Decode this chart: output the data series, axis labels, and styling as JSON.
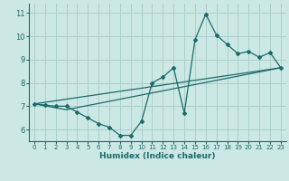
{
  "xlabel": "Humidex (Indice chaleur)",
  "ylabel": "",
  "background_color": "#cce8e4",
  "line_color": "#1a6b6b",
  "grid_color": "#aacfcb",
  "xlim": [
    -0.5,
    23.5
  ],
  "ylim": [
    5.5,
    11.4
  ],
  "xticks": [
    0,
    1,
    2,
    3,
    4,
    5,
    6,
    7,
    8,
    9,
    10,
    11,
    12,
    13,
    14,
    15,
    16,
    17,
    18,
    19,
    20,
    21,
    22,
    23
  ],
  "yticks": [
    6,
    7,
    8,
    9,
    10,
    11
  ],
  "line1_x": [
    0,
    1,
    2,
    3,
    4,
    5,
    6,
    7,
    8,
    9,
    10,
    11,
    12,
    13,
    14,
    15,
    16,
    17,
    18,
    19,
    20,
    21,
    22,
    23
  ],
  "line1_y": [
    7.1,
    7.05,
    7.0,
    7.0,
    6.75,
    6.5,
    6.25,
    6.1,
    5.75,
    5.75,
    6.35,
    8.0,
    8.25,
    8.65,
    6.7,
    9.85,
    10.95,
    10.05,
    9.65,
    9.25,
    9.35,
    9.1,
    9.3,
    8.65
  ],
  "line2_x": [
    0,
    3,
    23
  ],
  "line2_y": [
    7.1,
    6.85,
    8.65
  ],
  "line3_x": [
    0,
    23
  ],
  "line3_y": [
    7.1,
    8.65
  ]
}
